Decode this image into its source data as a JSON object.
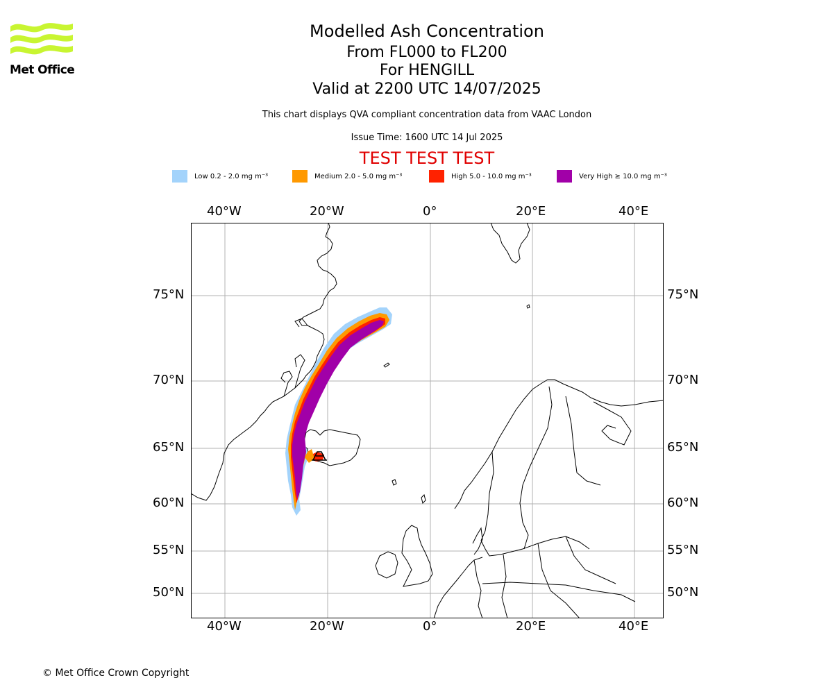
{
  "header": {
    "logo_text": "Met Office",
    "title": "Modelled Ash Concentration",
    "line2": "From FL000 to FL200",
    "line3": "For HENGILL",
    "line4": "Valid at 2200 UTC 14/07/2025",
    "description": "This chart displays QVA compliant concentration data from VAAC London",
    "issue_time": "Issue Time: 1600 UTC 14 Jul 2025",
    "test_banner": "TEST TEST TEST"
  },
  "legend": [
    {
      "label": "Low 0.2 - 2.0 mg m⁻³",
      "color": "#a3d3fb"
    },
    {
      "label": "Medium 2.0 - 5.0 mg m⁻³",
      "color": "#ff9900"
    },
    {
      "label": "High 5.0 - 10.0 mg m⁻³",
      "color": "#ff2200"
    },
    {
      "label": "Very High  ≥  10.0 mg m⁻³",
      "color": "#a100a8"
    }
  ],
  "map": {
    "lon_ticks": [
      "40°W",
      "20°W",
      "0°",
      "20°E",
      "40°E"
    ],
    "lat_ticks": [
      "75°N",
      "70°N",
      "65°N",
      "60°N",
      "55°N",
      "50°N"
    ],
    "grid": true,
    "source_volcano": "HENGILL"
  },
  "footer": {
    "copyright": "© Met Office Crown Copyright"
  }
}
